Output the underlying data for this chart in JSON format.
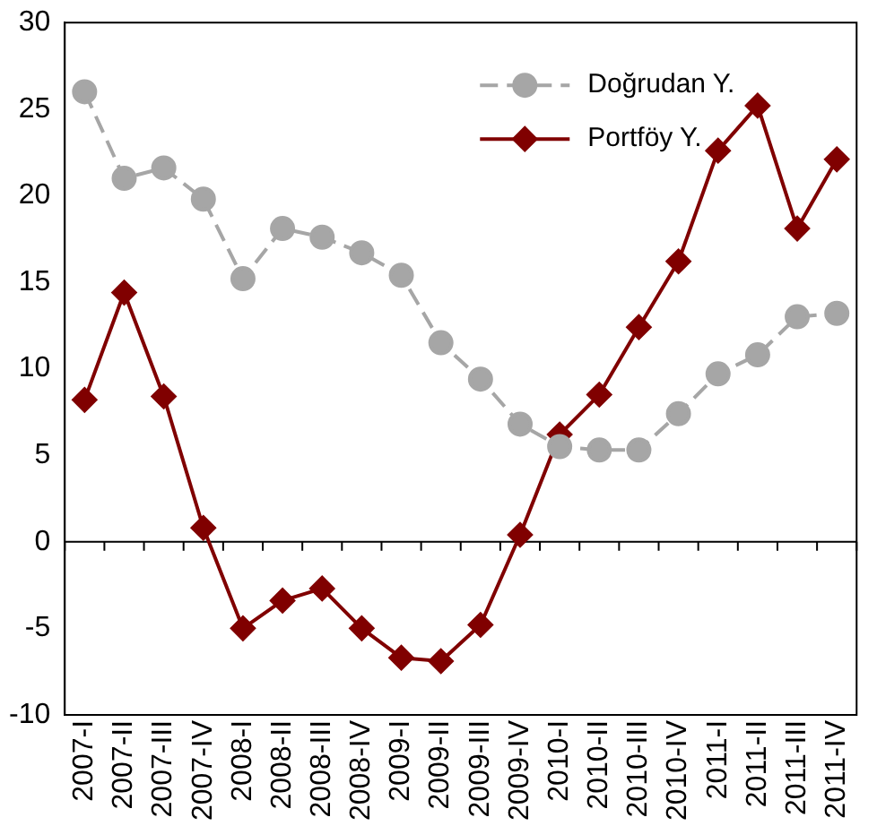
{
  "chart_data": {
    "type": "line",
    "categories": [
      "2007-I",
      "2007-II",
      "2007-III",
      "2007-IV",
      "2008-I",
      "2008-II",
      "2008-III",
      "2008-IV",
      "2009-I",
      "2009-II",
      "2009-III",
      "2009-IV",
      "2010-I",
      "2010-II",
      "2010-III",
      "2010-IV",
      "2011-I",
      "2011-II",
      "2011-III",
      "2011-IV"
    ],
    "series": [
      {
        "name": "Doğrudan Y.",
        "color": "#a6a6a6",
        "marker": "circle",
        "line_style": "dashed",
        "values": [
          26,
          21,
          21.6,
          19.8,
          15.2,
          18.1,
          17.6,
          16.7,
          15.4,
          11.5,
          9.4,
          6.8,
          5.5,
          5.3,
          5.3,
          7.4,
          9.7,
          10.8,
          13,
          13.2
        ]
      },
      {
        "name": "Portföy Y.",
        "color": "#800000",
        "marker": "diamond",
        "line_style": "solid",
        "values": [
          8.2,
          14.4,
          8.4,
          0.8,
          -5,
          -3.4,
          -2.7,
          -5,
          -6.7,
          -6.9,
          -4.8,
          0.4,
          6.2,
          8.5,
          12.4,
          16.2,
          22.6,
          25.2,
          18.1,
          22.1
        ]
      }
    ],
    "ylim": [
      -10,
      30
    ],
    "yticks": [
      -10,
      -5,
      0,
      5,
      10,
      15,
      20,
      25,
      30
    ],
    "grid": false,
    "legend": "top right",
    "ref_lines": [
      {
        "axis": "y",
        "value": 0,
        "color": "#000000"
      }
    ]
  }
}
